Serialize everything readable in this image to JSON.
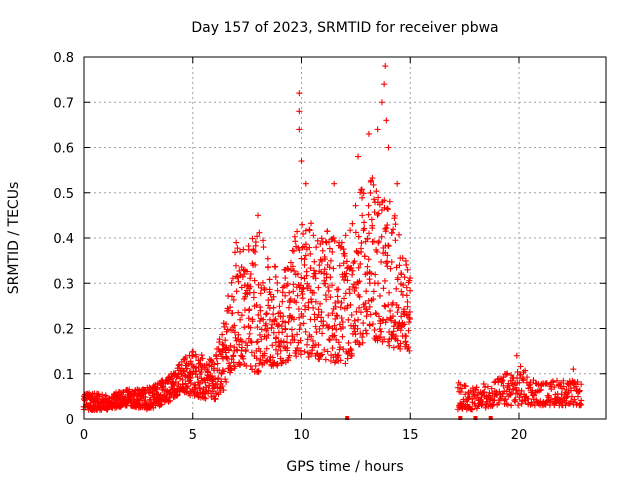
{
  "colors": {
    "series": "#ff0000",
    "gridline": "#a0a0a0",
    "axis": "#000000",
    "background": "#ffffff"
  },
  "chart_data": {
    "type": "scatter",
    "title": "Day 157 of 2023, SRMTID for receiver pbwa",
    "xlabel": "GPS time / hours",
    "ylabel": "SRMTID / TECUs",
    "xlim": [
      0,
      24
    ],
    "ylim": [
      0,
      0.8
    ],
    "xticks": [
      0,
      5,
      10,
      15,
      20
    ],
    "yticks": [
      0,
      0.1,
      0.2,
      0.3,
      0.4,
      0.5,
      0.6,
      0.7,
      0.8
    ],
    "xtick_labels": [
      "0",
      "5",
      "10",
      "15",
      "20"
    ],
    "ytick_labels": [
      "0",
      "0.1",
      "0.2",
      "0.3",
      "0.4",
      "0.5",
      "0.6",
      "0.7",
      "0.8"
    ],
    "grid": true,
    "marker": "plus",
    "series": [
      {
        "name": "SRMTID",
        "envelope": [
          {
            "x": 0.0,
            "lo": 0.02,
            "hi": 0.06
          },
          {
            "x": 1.0,
            "lo": 0.02,
            "hi": 0.055
          },
          {
            "x": 2.0,
            "lo": 0.03,
            "hi": 0.065
          },
          {
            "x": 3.0,
            "lo": 0.02,
            "hi": 0.07
          },
          {
            "x": 4.0,
            "lo": 0.04,
            "hi": 0.1
          },
          {
            "x": 4.5,
            "lo": 0.06,
            "hi": 0.13
          },
          {
            "x": 5.0,
            "lo": 0.05,
            "hi": 0.15
          },
          {
            "x": 6.0,
            "lo": 0.04,
            "hi": 0.13
          },
          {
            "x": 6.5,
            "lo": 0.07,
            "hi": 0.25
          },
          {
            "x": 7.0,
            "lo": 0.12,
            "hi": 0.38
          },
          {
            "x": 8.0,
            "lo": 0.1,
            "hi": 0.42
          },
          {
            "x": 9.0,
            "lo": 0.12,
            "hi": 0.32
          },
          {
            "x": 10.0,
            "lo": 0.14,
            "hi": 0.45
          },
          {
            "x": 11.0,
            "lo": 0.13,
            "hi": 0.42
          },
          {
            "x": 12.0,
            "lo": 0.12,
            "hi": 0.4
          },
          {
            "x": 13.0,
            "lo": 0.18,
            "hi": 0.55
          },
          {
            "x": 14.0,
            "lo": 0.16,
            "hi": 0.5
          },
          {
            "x": 15.0,
            "lo": 0.15,
            "hi": 0.32
          }
        ],
        "segment2_envelope": [
          {
            "x": 17.2,
            "lo": 0.02,
            "hi": 0.08
          },
          {
            "x": 18.0,
            "lo": 0.02,
            "hi": 0.07
          },
          {
            "x": 19.0,
            "lo": 0.03,
            "hi": 0.09
          },
          {
            "x": 20.0,
            "lo": 0.03,
            "hi": 0.12
          },
          {
            "x": 21.0,
            "lo": 0.03,
            "hi": 0.08
          },
          {
            "x": 22.0,
            "lo": 0.03,
            "hi": 0.09
          },
          {
            "x": 22.9,
            "lo": 0.03,
            "hi": 0.08
          }
        ],
        "peaks": [
          {
            "x": 7.0,
            "y": 0.39
          },
          {
            "x": 8.0,
            "y": 0.45
          },
          {
            "x": 9.9,
            "y": 0.72
          },
          {
            "x": 9.9,
            "y": 0.68
          },
          {
            "x": 9.9,
            "y": 0.64
          },
          {
            "x": 10.0,
            "y": 0.57
          },
          {
            "x": 10.2,
            "y": 0.52
          },
          {
            "x": 11.5,
            "y": 0.52
          },
          {
            "x": 12.6,
            "y": 0.58
          },
          {
            "x": 13.1,
            "y": 0.63
          },
          {
            "x": 13.5,
            "y": 0.64
          },
          {
            "x": 13.7,
            "y": 0.7
          },
          {
            "x": 13.8,
            "y": 0.74
          },
          {
            "x": 13.85,
            "y": 0.78
          },
          {
            "x": 13.9,
            "y": 0.66
          },
          {
            "x": 14.0,
            "y": 0.6
          },
          {
            "x": 14.4,
            "y": 0.52
          },
          {
            "x": 19.9,
            "y": 0.14
          },
          {
            "x": 22.5,
            "y": 0.11
          }
        ],
        "zero_markers": [
          12.1,
          17.3,
          18.0,
          18.7
        ]
      }
    ]
  }
}
